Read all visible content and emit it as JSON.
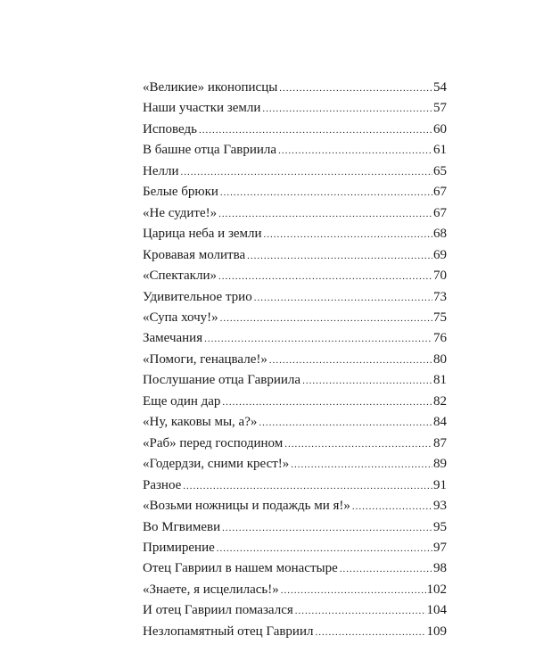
{
  "toc": [
    {
      "title": "«Великие» иконописцы",
      "page": "54"
    },
    {
      "title": "Наши участки земли",
      "page": "57"
    },
    {
      "title": "Исповедь",
      "page": "60"
    },
    {
      "title": "В башне отца Гавриила",
      "page": "61"
    },
    {
      "title": "Нелли",
      "page": "65"
    },
    {
      "title": "Белые брюки",
      "page": "67"
    },
    {
      "title": "«Не судите!»",
      "page": "67"
    },
    {
      "title": "Царица неба и земли",
      "page": "68"
    },
    {
      "title": "Кровавая молитва",
      "page": "69"
    },
    {
      "title": "«Спектакли»",
      "page": "70"
    },
    {
      "title": "Удивительное трио",
      "page": "73"
    },
    {
      "title": "«Супа хочу!»",
      "page": "75"
    },
    {
      "title": "Замечания",
      "page": "76"
    },
    {
      "title": "«Помоги, генацвале!»",
      "page": "80"
    },
    {
      "title": "Послушание отца Гавриила",
      "page": "81"
    },
    {
      "title": "Еще один дар",
      "page": "82"
    },
    {
      "title": "«Ну, каковы мы, а?»",
      "page": "84"
    },
    {
      "title": "«Раб» перед господином",
      "page": "87"
    },
    {
      "title": "«Годердзи, сними крест!»",
      "page": "89"
    },
    {
      "title": "Разное",
      "page": "91"
    },
    {
      "title": "«Возьми ножницы и подаждь ми я!»",
      "page": "93"
    },
    {
      "title": "Во Мгвимеви",
      "page": "95"
    },
    {
      "title": "Примирение",
      "page": "97"
    },
    {
      "title": "Отец Гавриил в нашем монастыре",
      "page": "98"
    },
    {
      "title": "«Знаете, я исцелилась!»",
      "page": "102"
    },
    {
      "title": "И отец Гавриил помазался",
      "page": "104"
    },
    {
      "title": "Незлопамятный отец Гавриил",
      "page": "109"
    }
  ]
}
